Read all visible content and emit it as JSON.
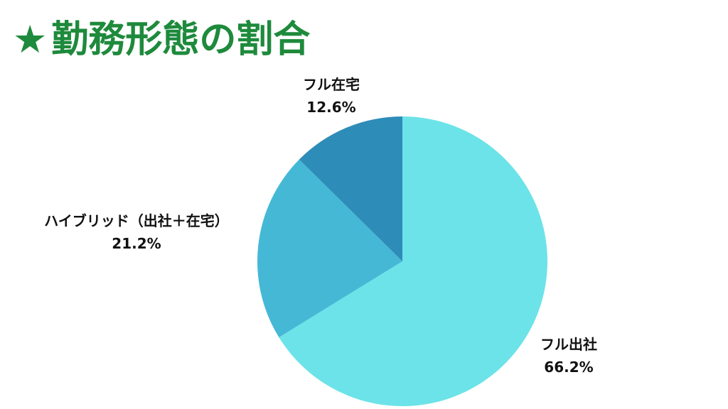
{
  "title": {
    "star": "★",
    "text": "勤務形態の割合"
  },
  "chart_data": {
    "type": "pie",
    "start": "12 o'clock",
    "direction": "clockwise",
    "slices": [
      {
        "label": "フル出社",
        "value": 66.2,
        "value_label": "66.2%",
        "color": "#6ce3e8"
      },
      {
        "label": "ハイブリッド（出社＋在宅）",
        "value": 21.2,
        "value_label": "21.2%",
        "color": "#45b8d6"
      },
      {
        "label": "フル在宅",
        "value": 12.6,
        "value_label": "12.6%",
        "color": "#2e8cb8"
      }
    ]
  }
}
